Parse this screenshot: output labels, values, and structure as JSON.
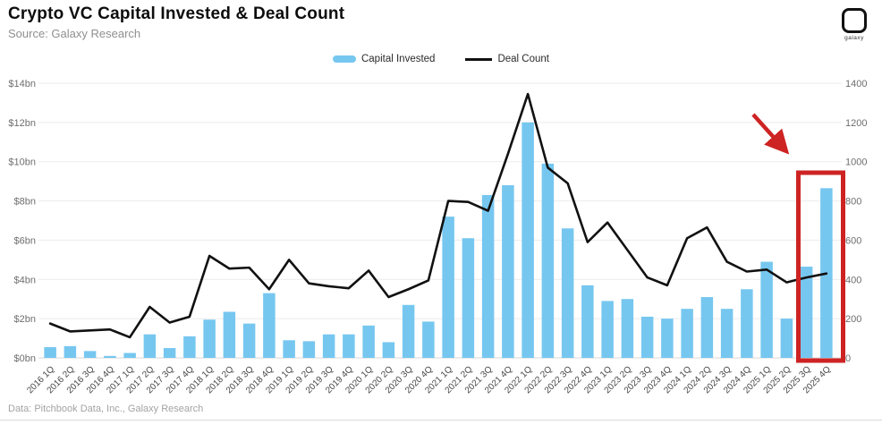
{
  "header": {
    "title": "Crypto VC Capital Invested & Deal Count",
    "source": "Source: Galaxy Research",
    "logo_text": "galaxy"
  },
  "legend": {
    "capital_invested_label": "Capital Invested",
    "deal_count_label": "Deal Count"
  },
  "footer": {
    "credit": "Data: Pitchbook Data, Inc., Galaxy Research"
  },
  "colors": {
    "bar": "#76C7F0",
    "line": "#111111",
    "annotation_red": "#CE2323",
    "grid": "#ebebeb",
    "baseline": "#d8d8d8",
    "tick_text": "#6e6e6e",
    "xlabel_text": "#474747"
  },
  "chart_data": {
    "type": "bar",
    "title": "Crypto VC Capital Invested & Deal Count",
    "categories": [
      "2016 1Q",
      "2016 2Q",
      "2016 3Q",
      "2016 4Q",
      "2017 1Q",
      "2017 2Q",
      "2017 3Q",
      "2017 4Q",
      "2018 1Q",
      "2018 2Q",
      "2018 3Q",
      "2018 4Q",
      "2019 1Q",
      "2019 2Q",
      "2019 3Q",
      "2019 4Q",
      "2020 1Q",
      "2020 2Q",
      "2020 3Q",
      "2020 4Q",
      "2021 1Q",
      "2021 2Q",
      "2021 3Q",
      "2021 4Q",
      "2022 1Q",
      "2022 2Q",
      "2022 3Q",
      "2022 4Q",
      "2023 1Q",
      "2023 2Q",
      "2023 3Q",
      "2023 4Q",
      "2024 1Q",
      "2024 2Q",
      "2024 3Q",
      "2024 4Q",
      "2025 1Q",
      "2025 2Q",
      "2025 3Q",
      "2025 4Q"
    ],
    "series": [
      {
        "name": "Capital Invested",
        "type": "bar",
        "axis": "left",
        "unit": "$bn",
        "values": [
          0.55,
          0.6,
          0.35,
          0.1,
          0.25,
          1.2,
          0.5,
          1.1,
          1.95,
          2.35,
          1.75,
          3.3,
          0.9,
          0.85,
          1.2,
          1.2,
          1.65,
          0.8,
          2.7,
          1.85,
          7.2,
          6.1,
          8.3,
          8.8,
          12.0,
          9.9,
          6.6,
          3.7,
          2.9,
          3.0,
          2.1,
          2.0,
          2.5,
          3.1,
          2.5,
          3.5,
          4.9,
          2.0,
          4.65,
          8.65
        ]
      },
      {
        "name": "Deal Count",
        "type": "line",
        "axis": "right",
        "values": [
          175,
          135,
          140,
          145,
          105,
          260,
          180,
          210,
          520,
          455,
          460,
          350,
          500,
          380,
          365,
          355,
          445,
          310,
          350,
          395,
          800,
          795,
          750,
          1040,
          1345,
          970,
          890,
          590,
          690,
          550,
          410,
          370,
          610,
          665,
          490,
          440,
          450,
          385,
          410,
          430
        ]
      }
    ],
    "left_axis": {
      "min": 0,
      "max": 14,
      "tick_values": [
        0,
        2,
        4,
        6,
        8,
        10,
        12,
        14
      ],
      "tick_labels": [
        "$0bn",
        "$2bn",
        "$4bn",
        "$6bn",
        "$8bn",
        "$10bn",
        "$12bn",
        "$14bn"
      ]
    },
    "right_axis": {
      "min": 0,
      "max": 1400,
      "tick_values": [
        0,
        200,
        400,
        600,
        800,
        1000,
        1200,
        1400
      ],
      "tick_labels": [
        "0",
        "200",
        "400",
        "600",
        "800",
        "1000",
        "1200",
        "1400"
      ]
    },
    "grid": true,
    "legend_position": "top-center",
    "annotations": [
      {
        "kind": "box",
        "highlights": [
          "2025 3Q",
          "2025 4Q"
        ],
        "color": "#CE2323"
      },
      {
        "kind": "arrow",
        "points_to": "2025 highlighted bars",
        "color": "#CE2323"
      }
    ]
  }
}
